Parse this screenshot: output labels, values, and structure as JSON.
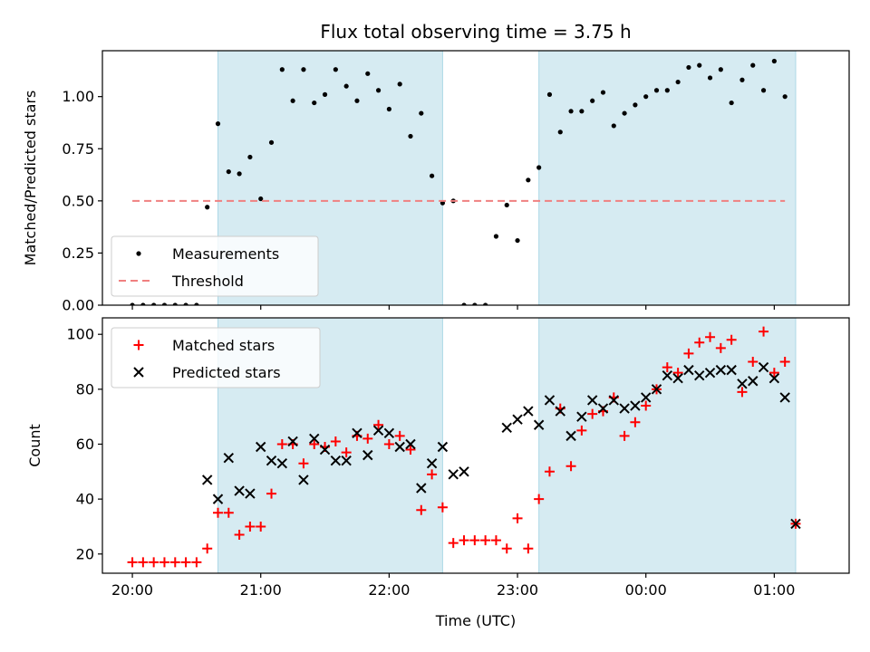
{
  "chart_data": [
    {
      "type": "scatter",
      "title": "Flux total observing time = 3.75 h",
      "xlabel": "",
      "ylabel": "Matched/Predicted stars",
      "xlim": [
        "19:46",
        "01:35"
      ],
      "ylim": [
        0,
        1.22
      ],
      "yticks": [
        "0.00",
        "0.25",
        "0.50",
        "0.75",
        "1.00"
      ],
      "ytick_values": [
        0,
        0.25,
        0.5,
        0.75,
        1.0
      ],
      "shaded_intervals": [
        [
          "20:40",
          "22:25"
        ],
        [
          "23:10",
          "01:10"
        ]
      ],
      "legend_position": "lower-left",
      "series": [
        {
          "name": "Measurements",
          "marker": "dot",
          "color": "#000000",
          "points": [
            [
              "20:00",
              0.0
            ],
            [
              "20:05",
              0.0
            ],
            [
              "20:10",
              0.0
            ],
            [
              "20:15",
              0.0
            ],
            [
              "20:20",
              0.0
            ],
            [
              "20:25",
              0.0
            ],
            [
              "20:30",
              0.0
            ],
            [
              "20:35",
              0.47
            ],
            [
              "20:40",
              0.87
            ],
            [
              "20:45",
              0.64
            ],
            [
              "20:50",
              0.63
            ],
            [
              "20:55",
              0.71
            ],
            [
              "21:00",
              0.51
            ],
            [
              "21:05",
              0.78
            ],
            [
              "21:10",
              1.13
            ],
            [
              "21:15",
              0.98
            ],
            [
              "21:20",
              1.13
            ],
            [
              "21:25",
              0.97
            ],
            [
              "21:30",
              1.01
            ],
            [
              "21:35",
              1.13
            ],
            [
              "21:40",
              1.05
            ],
            [
              "21:45",
              0.98
            ],
            [
              "21:50",
              1.11
            ],
            [
              "21:55",
              1.03
            ],
            [
              "22:00",
              0.94
            ],
            [
              "22:05",
              1.06
            ],
            [
              "22:10",
              0.81
            ],
            [
              "22:15",
              0.92
            ],
            [
              "22:20",
              0.62
            ],
            [
              "22:25",
              0.49
            ],
            [
              "22:30",
              0.5
            ],
            [
              "22:35",
              0.0
            ],
            [
              "22:40",
              0.0
            ],
            [
              "22:45",
              0.0
            ],
            [
              "22:50",
              0.33
            ],
            [
              "22:55",
              0.48
            ],
            [
              "23:00",
              0.31
            ],
            [
              "23:05",
              0.6
            ],
            [
              "23:10",
              0.66
            ],
            [
              "23:15",
              1.01
            ],
            [
              "23:20",
              0.83
            ],
            [
              "23:25",
              0.93
            ],
            [
              "23:30",
              0.93
            ],
            [
              "23:35",
              0.98
            ],
            [
              "23:40",
              1.02
            ],
            [
              "23:45",
              0.86
            ],
            [
              "23:50",
              0.92
            ],
            [
              "23:55",
              0.96
            ],
            [
              "00:00",
              1.0
            ],
            [
              "00:05",
              1.03
            ],
            [
              "00:10",
              1.03
            ],
            [
              "00:15",
              1.07
            ],
            [
              "00:20",
              1.14
            ],
            [
              "00:25",
              1.15
            ],
            [
              "00:30",
              1.09
            ],
            [
              "00:35",
              1.13
            ],
            [
              "00:40",
              0.97
            ],
            [
              "00:45",
              1.08
            ],
            [
              "00:50",
              1.15
            ],
            [
              "00:55",
              1.03
            ],
            [
              "01:00",
              1.17
            ],
            [
              "01:05",
              1.0
            ]
          ]
        },
        {
          "name": "Threshold",
          "marker": "dashed-line",
          "color": "#f08080",
          "points": [
            [
              "20:00",
              0.5
            ],
            [
              "01:05",
              0.5
            ]
          ]
        }
      ]
    },
    {
      "type": "scatter",
      "title": "",
      "xlabel": "Time (UTC)",
      "ylabel": "Count",
      "xlim": [
        "19:46",
        "01:35"
      ],
      "ylim": [
        13,
        106
      ],
      "xticks": [
        "20:00",
        "21:00",
        "22:00",
        "23:00",
        "00:00",
        "01:00"
      ],
      "yticks": [
        "20",
        "40",
        "60",
        "80",
        "100"
      ],
      "ytick_values": [
        20,
        40,
        60,
        80,
        100
      ],
      "shaded_intervals": [
        [
          "20:40",
          "22:25"
        ],
        [
          "23:10",
          "01:10"
        ]
      ],
      "legend_position": "top-left",
      "series": [
        {
          "name": "Matched stars",
          "marker": "plus",
          "color": "#ff0000",
          "points": [
            [
              "20:00",
              17
            ],
            [
              "20:05",
              17
            ],
            [
              "20:10",
              17
            ],
            [
              "20:15",
              17
            ],
            [
              "20:20",
              17
            ],
            [
              "20:25",
              17
            ],
            [
              "20:30",
              17
            ],
            [
              "20:35",
              22
            ],
            [
              "20:40",
              35
            ],
            [
              "20:45",
              35
            ],
            [
              "20:50",
              27
            ],
            [
              "20:55",
              30
            ],
            [
              "21:00",
              30
            ],
            [
              "21:05",
              42
            ],
            [
              "21:10",
              60
            ],
            [
              "21:15",
              60
            ],
            [
              "21:20",
              53
            ],
            [
              "21:25",
              60
            ],
            [
              "21:30",
              59
            ],
            [
              "21:35",
              61
            ],
            [
              "21:40",
              57
            ],
            [
              "21:45",
              63
            ],
            [
              "21:50",
              62
            ],
            [
              "21:55",
              67
            ],
            [
              "22:00",
              60
            ],
            [
              "22:05",
              63
            ],
            [
              "22:10",
              58
            ],
            [
              "22:15",
              36
            ],
            [
              "22:20",
              49
            ],
            [
              "22:25",
              37
            ],
            [
              "22:30",
              24
            ],
            [
              "22:35",
              25
            ],
            [
              "22:40",
              25
            ],
            [
              "22:45",
              25
            ],
            [
              "22:50",
              25
            ],
            [
              "22:55",
              22
            ],
            [
              "23:00",
              33
            ],
            [
              "23:05",
              22
            ],
            [
              "23:10",
              40
            ],
            [
              "23:15",
              50
            ],
            [
              "23:20",
              73
            ],
            [
              "23:25",
              52
            ],
            [
              "23:30",
              65
            ],
            [
              "23:35",
              71
            ],
            [
              "23:40",
              72
            ],
            [
              "23:45",
              77
            ],
            [
              "23:50",
              63
            ],
            [
              "23:55",
              68
            ],
            [
              "00:00",
              74
            ],
            [
              "00:05",
              80
            ],
            [
              "00:10",
              88
            ],
            [
              "00:15",
              86
            ],
            [
              "00:20",
              93
            ],
            [
              "00:25",
              97
            ],
            [
              "00:30",
              99
            ],
            [
              "00:35",
              95
            ],
            [
              "00:40",
              98
            ],
            [
              "00:45",
              79
            ],
            [
              "00:50",
              90
            ],
            [
              "00:55",
              101
            ],
            [
              "01:00",
              86
            ],
            [
              "01:05",
              90
            ],
            [
              "01:10",
              31
            ]
          ]
        },
        {
          "name": "Predicted stars",
          "marker": "x",
          "color": "#000000",
          "points": [
            [
              "20:35",
              47
            ],
            [
              "20:40",
              40
            ],
            [
              "20:45",
              55
            ],
            [
              "20:50",
              43
            ],
            [
              "20:55",
              42
            ],
            [
              "21:00",
              59
            ],
            [
              "21:05",
              54
            ],
            [
              "21:10",
              53
            ],
            [
              "21:15",
              61
            ],
            [
              "21:20",
              47
            ],
            [
              "21:25",
              62
            ],
            [
              "21:30",
              58
            ],
            [
              "21:35",
              54
            ],
            [
              "21:40",
              54
            ],
            [
              "21:45",
              64
            ],
            [
              "21:50",
              56
            ],
            [
              "21:55",
              65
            ],
            [
              "22:00",
              64
            ],
            [
              "22:05",
              59
            ],
            [
              "22:10",
              60
            ],
            [
              "22:15",
              44
            ],
            [
              "22:20",
              53
            ],
            [
              "22:25",
              59
            ],
            [
              "22:30",
              49
            ],
            [
              "22:35",
              50
            ],
            [
              "22:55",
              66
            ],
            [
              "23:00",
              69
            ],
            [
              "23:05",
              72
            ],
            [
              "23:10",
              67
            ],
            [
              "23:15",
              76
            ],
            [
              "23:20",
              72
            ],
            [
              "23:25",
              63
            ],
            [
              "23:30",
              70
            ],
            [
              "23:35",
              76
            ],
            [
              "23:40",
              73
            ],
            [
              "23:45",
              76
            ],
            [
              "23:50",
              73
            ],
            [
              "23:55",
              74
            ],
            [
              "00:00",
              77
            ],
            [
              "00:05",
              80
            ],
            [
              "00:10",
              85
            ],
            [
              "00:15",
              84
            ],
            [
              "00:20",
              87
            ],
            [
              "00:25",
              85
            ],
            [
              "00:30",
              86
            ],
            [
              "00:35",
              87
            ],
            [
              "00:40",
              87
            ],
            [
              "00:45",
              82
            ],
            [
              "00:50",
              83
            ],
            [
              "00:55",
              88
            ],
            [
              "01:00",
              84
            ],
            [
              "01:05",
              77
            ],
            [
              "01:10",
              31
            ]
          ]
        }
      ]
    }
  ]
}
